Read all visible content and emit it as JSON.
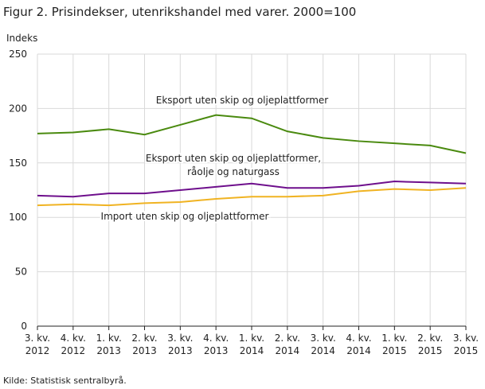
{
  "title": "Figur 2. Prisindekser, utenrikshandel med varer. 2000=100",
  "source": "Kilde: Statistisk sentralbyrå.",
  "chart_data": {
    "type": "line",
    "title": "Figur 2. Prisindekser, utenrikshandel med varer. 2000=100",
    "ylabel": "Indeks",
    "ylim": [
      0,
      250
    ],
    "yticks": [
      0,
      50,
      100,
      150,
      200,
      250
    ],
    "grid": true,
    "categories": [
      [
        "3. kv.",
        "2012"
      ],
      [
        "4. kv.",
        "2012"
      ],
      [
        "1. kv.",
        "2013"
      ],
      [
        "2. kv.",
        "2013"
      ],
      [
        "3. kv.",
        "2013"
      ],
      [
        "4. kv.",
        "2013"
      ],
      [
        "1. kv.",
        "2014"
      ],
      [
        "2. kv.",
        "2014"
      ],
      [
        "3. kv.",
        "2014"
      ],
      [
        "4. kv.",
        "2014"
      ],
      [
        "1. kv.",
        "2015"
      ],
      [
        "2. kv.",
        "2015"
      ],
      [
        "3. kv.",
        "2015"
      ]
    ],
    "series": [
      {
        "name": "Eksport uten skip og oljeplattformer",
        "label_lines": [
          "Eksport uten skip og oljeplattformer"
        ],
        "color": "#4a8a0f",
        "values": [
          177,
          178,
          181,
          176,
          185,
          194,
          191,
          179,
          173,
          170,
          168,
          166,
          159
        ]
      },
      {
        "name": "Eksport uten skip og oljeplattformer, råolje og naturgass",
        "label_lines": [
          "Eksport uten skip og oljeplattformer,",
          "råolje  og naturgass"
        ],
        "color": "#6e0f8c",
        "values": [
          120,
          119,
          122,
          122,
          125,
          128,
          131,
          127,
          127,
          129,
          133,
          132,
          131
        ]
      },
      {
        "name": "Import uten skip og oljeplattformer",
        "label_lines": [
          "Import uten skip og oljeplattformer"
        ],
        "color": "#f0b322",
        "values": [
          111,
          112,
          111,
          113,
          114,
          117,
          119,
          119,
          120,
          124,
          126,
          125,
          127
        ]
      }
    ]
  }
}
